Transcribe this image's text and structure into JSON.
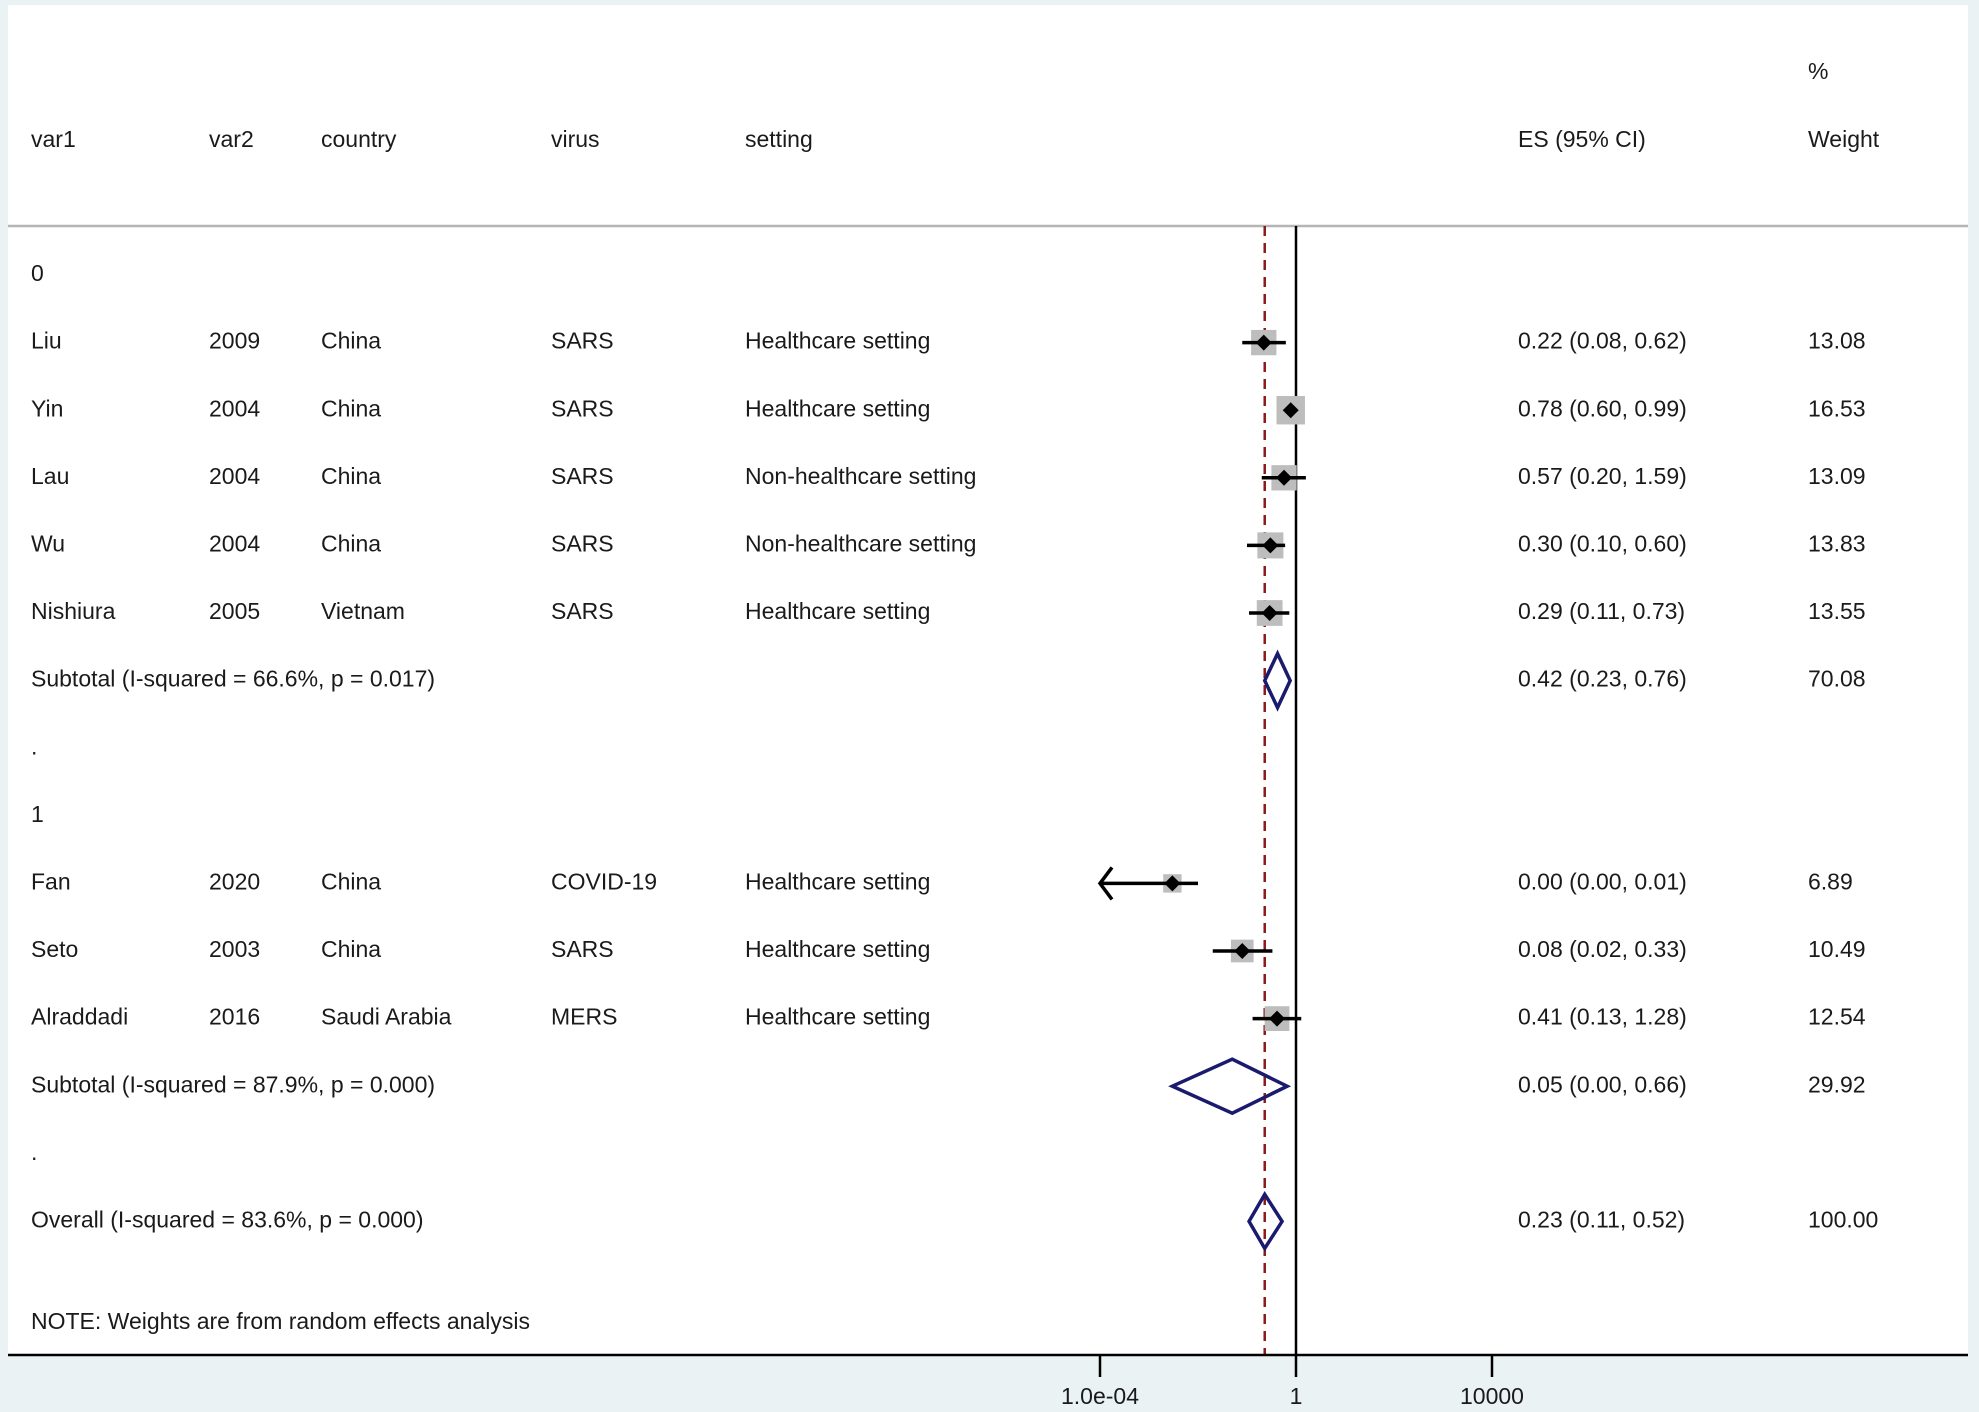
{
  "chart_data": {
    "type": "forest",
    "columns": {
      "var1": "var1",
      "var2": "var2",
      "country": "country",
      "virus": "virus",
      "setting": "setting",
      "es": "ES (95% CI)",
      "weight_pct": "%",
      "weight": "Weight"
    },
    "x_scale": "log10",
    "x_ticks": [
      {
        "value": 0.0001,
        "label": "1.0e-04"
      },
      {
        "value": 1,
        "label": "1"
      },
      {
        "value": 10000,
        "label": "10000"
      }
    ],
    "null_line": 1,
    "overall_line": 0.23,
    "rows": [
      {
        "kind": "group",
        "label": "0"
      },
      {
        "kind": "study",
        "var1": "Liu",
        "var2": "2009",
        "country": "China",
        "virus": "SARS",
        "setting": "Healthcare setting",
        "es": 0.22,
        "lo": 0.08,
        "hi": 0.62,
        "es_text": "0.22 (0.08, 0.62)",
        "weight": "13.08"
      },
      {
        "kind": "study",
        "var1": "Yin",
        "var2": "2004",
        "country": "China",
        "virus": "SARS",
        "setting": "Healthcare setting",
        "es": 0.78,
        "lo": 0.6,
        "hi": 0.99,
        "es_text": "0.78 (0.60, 0.99)",
        "weight": "16.53"
      },
      {
        "kind": "study",
        "var1": "Lau",
        "var2": "2004",
        "country": "China",
        "virus": "SARS",
        "setting": "Non-healthcare setting",
        "es": 0.57,
        "lo": 0.2,
        "hi": 1.59,
        "es_text": "0.57 (0.20, 1.59)",
        "weight": "13.09"
      },
      {
        "kind": "study",
        "var1": "Wu",
        "var2": "2004",
        "country": "China",
        "virus": "SARS",
        "setting": "Non-healthcare setting",
        "es": 0.3,
        "lo": 0.1,
        "hi": 0.6,
        "es_text": "0.30 (0.10, 0.60)",
        "weight": "13.83"
      },
      {
        "kind": "study",
        "var1": "Nishiura",
        "var2": "2005",
        "country": "Vietnam",
        "virus": "SARS",
        "setting": "Healthcare setting",
        "es": 0.29,
        "lo": 0.11,
        "hi": 0.73,
        "es_text": "0.29 (0.11, 0.73)",
        "weight": "13.55"
      },
      {
        "kind": "subtotal",
        "label": "Subtotal  (I-squared = 66.6%, p = 0.017)",
        "es": 0.42,
        "lo": 0.23,
        "hi": 0.76,
        "es_text": "0.42 (0.23, 0.76)",
        "weight": "70.08"
      },
      {
        "kind": "spacer",
        "label": "."
      },
      {
        "kind": "group",
        "label": "1"
      },
      {
        "kind": "study",
        "var1": "Fan",
        "var2": "2020",
        "country": "China",
        "virus": "COVID-19",
        "setting": "Healthcare setting",
        "es": 0.003,
        "lo": 0.0001,
        "hi": 0.01,
        "es_text": "0.00 (0.00, 0.01)",
        "weight": "6.89",
        "truncated_left": true
      },
      {
        "kind": "study",
        "var1": "Seto",
        "var2": "2003",
        "country": "China",
        "virus": "SARS",
        "setting": "Healthcare setting",
        "es": 0.08,
        "lo": 0.02,
        "hi": 0.33,
        "es_text": "0.08 (0.02, 0.33)",
        "weight": "10.49"
      },
      {
        "kind": "study",
        "var1": "Alraddadi",
        "var2": "2016",
        "country": "Saudi Arabia",
        "virus": "MERS",
        "setting": "Healthcare setting",
        "es": 0.41,
        "lo": 0.13,
        "hi": 1.28,
        "es_text": "0.41 (0.13, 1.28)",
        "weight": "12.54"
      },
      {
        "kind": "subtotal",
        "label": "Subtotal  (I-squared = 87.9%, p = 0.000)",
        "es": 0.05,
        "lo": 0.003,
        "hi": 0.66,
        "es_text": "0.05 (0.00, 0.66)",
        "weight": "29.92"
      },
      {
        "kind": "spacer",
        "label": "."
      },
      {
        "kind": "overall",
        "label": "Overall  (I-squared = 83.6%, p = 0.000)",
        "es": 0.23,
        "lo": 0.11,
        "hi": 0.52,
        "es_text": "0.23 (0.11, 0.52)",
        "weight": "100.00"
      }
    ],
    "note": "NOTE: Weights are from random effects analysis",
    "colors": {
      "background": "#eaf2f3",
      "plot_area": "#ffffff",
      "weight_box": "#bdbdbd",
      "point": "#000000",
      "diamond": "#1a1a6e",
      "overall_line": "#8b1a1a",
      "axis": "#000000"
    }
  }
}
